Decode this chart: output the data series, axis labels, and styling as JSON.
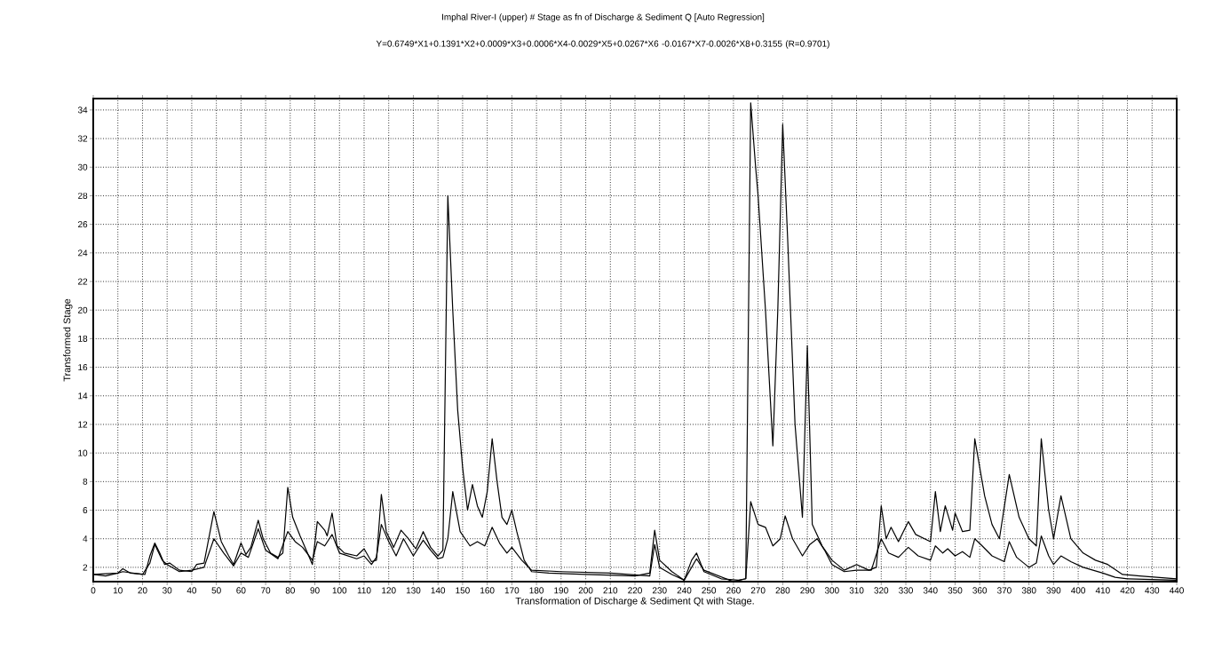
{
  "chart_data": {
    "type": "line",
    "title": "Imphal River-I (upper) # Stage as fn of Discharge & Sediment Q  [Auto Regression]",
    "subtitle": "Y=0.6749*X1+0.1391*X2+0.0009*X3+0.0006*X4-0.0029*X5+0.0267*X6 -0.0167*X7-0.0026*X8+0.3155 (R=0.9701)",
    "xlabel": "Transformation of Discharge & Sediment Qt with Stage.",
    "ylabel": "Transformed Stage",
    "xlim": [
      0,
      440
    ],
    "ylim": [
      1,
      34.8
    ],
    "xticks": [
      0,
      10,
      20,
      30,
      40,
      50,
      60,
      70,
      80,
      90,
      100,
      110,
      120,
      130,
      140,
      150,
      160,
      170,
      180,
      190,
      200,
      210,
      220,
      230,
      240,
      250,
      260,
      270,
      280,
      290,
      300,
      310,
      320,
      330,
      340,
      350,
      360,
      370,
      380,
      390,
      400,
      410,
      420,
      430,
      440
    ],
    "yticks": [
      2,
      4,
      6,
      8,
      10,
      12,
      14,
      16,
      18,
      20,
      22,
      24,
      26,
      28,
      30,
      32,
      34
    ],
    "grid": true,
    "series": [
      {
        "color": "#000000",
        "x": [
          0,
          5,
          10,
          12,
          15,
          21,
          23,
          25,
          27,
          29,
          31,
          35,
          40,
          42,
          45,
          49,
          52,
          55,
          57,
          60,
          62,
          64,
          67,
          69,
          72,
          75,
          77,
          79,
          81,
          84,
          87,
          89,
          91,
          94,
          95,
          97,
          99,
          102,
          107,
          110,
          113,
          115,
          117,
          119,
          122,
          125,
          128,
          131,
          134,
          137,
          140,
          142,
          144,
          146,
          148,
          150,
          152,
          154,
          156,
          158,
          160,
          162,
          164,
          166,
          168,
          170,
          172,
          175,
          178,
          185,
          200,
          220,
          226,
          228,
          230,
          235,
          240,
          243,
          245,
          248,
          255,
          262,
          265,
          267,
          269,
          270,
          273,
          276,
          278,
          280,
          282,
          285,
          288,
          290,
          292,
          296,
          300,
          305,
          310,
          315,
          318,
          320,
          322,
          324,
          327,
          331,
          334,
          340,
          342,
          344,
          346,
          349,
          350,
          353,
          356,
          358,
          362,
          365,
          368,
          372,
          376,
          380,
          383,
          385,
          388,
          390,
          393,
          397,
          402,
          407,
          412,
          418,
          425,
          440
        ],
        "values": [
          1.5,
          1.4,
          1.6,
          1.9,
          1.6,
          1.5,
          2.8,
          3.7,
          3.0,
          2.2,
          2.3,
          1.8,
          1.7,
          2.2,
          2.3,
          5.9,
          3.8,
          2.8,
          2.2,
          3.7,
          2.9,
          3.4,
          5.3,
          4.0,
          3.0,
          2.7,
          3.0,
          7.6,
          5.5,
          4.2,
          3.0,
          2.2,
          5.2,
          4.6,
          4.2,
          5.8,
          3.5,
          3.0,
          2.8,
          3.3,
          2.4,
          2.5,
          7.1,
          4.5,
          3.4,
          4.6,
          4.0,
          3.3,
          4.5,
          3.4,
          2.8,
          3.2,
          28.0,
          20.0,
          13.0,
          9.0,
          6.0,
          7.8,
          6.3,
          5.5,
          7.3,
          11.0,
          8.0,
          5.5,
          5.0,
          6.0,
          4.5,
          2.5,
          1.7,
          1.6,
          1.5,
          1.4,
          1.6,
          4.6,
          2.5,
          1.7,
          1.1,
          2.5,
          3.0,
          1.7,
          1.2,
          1.1,
          1.2,
          34.5,
          30.0,
          28.0,
          20.0,
          10.5,
          20.0,
          33.0,
          25.0,
          12.0,
          5.5,
          17.5,
          5.0,
          3.5,
          2.5,
          1.8,
          2.2,
          1.8,
          2.0,
          6.3,
          4.0,
          4.8,
          3.8,
          5.2,
          4.3,
          3.8,
          7.3,
          4.5,
          6.3,
          4.6,
          5.8,
          4.5,
          4.6,
          11.0,
          7.0,
          5.0,
          4.0,
          8.5,
          5.5,
          4.0,
          3.5,
          11.0,
          6.0,
          4.0,
          7.0,
          4.0,
          3.0,
          2.5,
          2.2,
          1.5,
          1.4,
          1.2
        ]
      },
      {
        "color": "#000000",
        "x": [
          0,
          10,
          12,
          20,
          23,
          25,
          28,
          30,
          35,
          40,
          45,
          49,
          53,
          57,
          60,
          63,
          67,
          70,
          75,
          79,
          82,
          85,
          89,
          91,
          94,
          97,
          100,
          107,
          110,
          113,
          115,
          117,
          120,
          123,
          126,
          130,
          134,
          137,
          140,
          142,
          144,
          146,
          149,
          153,
          156,
          159,
          162,
          165,
          168,
          170,
          174,
          178,
          190,
          210,
          226,
          228,
          230,
          235,
          240,
          245,
          248,
          260,
          265,
          267,
          270,
          273,
          276,
          279,
          281,
          284,
          288,
          291,
          294,
          297,
          300,
          305,
          310,
          316,
          320,
          323,
          327,
          331,
          335,
          340,
          342,
          345,
          347,
          350,
          353,
          356,
          358,
          361,
          365,
          370,
          372,
          375,
          380,
          383,
          385,
          388,
          390,
          393,
          397,
          402,
          410,
          415,
          420,
          440
        ],
        "values": [
          1.5,
          1.6,
          1.7,
          1.5,
          2.3,
          3.6,
          2.5,
          2.2,
          1.7,
          1.8,
          2.0,
          4.0,
          3.0,
          2.1,
          3.0,
          2.7,
          4.7,
          3.2,
          2.6,
          4.5,
          3.8,
          3.4,
          2.5,
          3.8,
          3.5,
          4.3,
          3.0,
          2.6,
          2.8,
          2.2,
          2.7,
          5.0,
          3.8,
          2.8,
          4.0,
          2.8,
          3.9,
          3.2,
          2.6,
          2.7,
          4.0,
          7.3,
          4.5,
          3.5,
          3.8,
          3.5,
          4.8,
          3.7,
          3.0,
          3.4,
          2.5,
          1.8,
          1.7,
          1.6,
          1.4,
          3.6,
          2.0,
          1.5,
          1.1,
          2.6,
          1.8,
          1.0,
          1.2,
          6.6,
          5.0,
          4.8,
          3.5,
          4.0,
          5.6,
          4.0,
          2.8,
          3.6,
          4.0,
          3.2,
          2.2,
          1.7,
          1.8,
          1.8,
          4.0,
          3.0,
          2.7,
          3.4,
          2.8,
          2.5,
          3.5,
          3.0,
          3.3,
          2.8,
          3.1,
          2.7,
          4.0,
          3.5,
          2.8,
          2.4,
          3.8,
          2.7,
          2.0,
          2.3,
          4.2,
          2.8,
          2.2,
          2.8,
          2.4,
          2.0,
          1.6,
          1.3,
          1.2,
          1.1
        ]
      }
    ]
  }
}
